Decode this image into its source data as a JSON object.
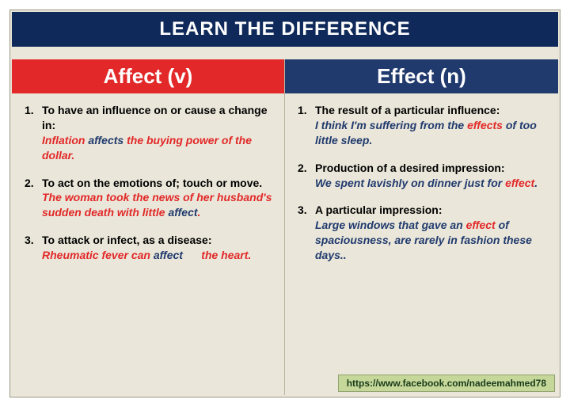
{
  "title": "LEARN THE DIFFERENCE",
  "colors": {
    "frame_bg": "#eae6d9",
    "title_bg": "#0f2a5a",
    "red": "#e22828",
    "blue": "#203a6e",
    "footer_bg": "#c5d89a"
  },
  "left": {
    "header": "Affect (v)",
    "items": [
      {
        "num": "1.",
        "def": "To have an influence on or cause a change in:",
        "ex_pre": "Inflation ",
        "ex_kw": "affects",
        "ex_post": " the buying power of the dollar.",
        "ex_color": "red",
        "kw_color": "blue"
      },
      {
        "num": "2.",
        "def": "To act on the emotions of; touch or move.",
        "ex_pre": "The woman took the news of her husband's sudden death with little ",
        "ex_kw": "affect",
        "ex_post": ".",
        "ex_color": "red",
        "kw_color": "blue"
      },
      {
        "num": "3.",
        "def": "To attack or infect, as a disease:",
        "ex_pre": "Rheumatic fever can ",
        "ex_kw": "affect",
        "ex_post": "      the heart.",
        "ex_color": "red",
        "kw_color": "blue"
      }
    ]
  },
  "right": {
    "header": "Effect (n)",
    "items": [
      {
        "num": "1.",
        "def": "The result of a particular influence:",
        "ex_pre": "I think I'm suffering from the ",
        "ex_kw": "effects",
        "ex_post": " of too little sleep.",
        "ex_color": "blue",
        "kw_color": "red"
      },
      {
        "num": "2.",
        "def": "Production of a desired impression:",
        "ex_pre": "We spent lavishly on dinner just for ",
        "ex_kw": "effect",
        "ex_post": ".",
        "ex_color": "blue",
        "kw_color": "red"
      },
      {
        "num": "3.",
        "def": "A particular impression:",
        "ex_pre": "Large windows that gave an ",
        "ex_kw": "effect",
        "ex_post": " of spaciousness, are rarely in fashion these days..",
        "ex_color": "blue",
        "kw_color": "red"
      }
    ]
  },
  "footer": "https://www.facebook.com/nadeemahmed78"
}
